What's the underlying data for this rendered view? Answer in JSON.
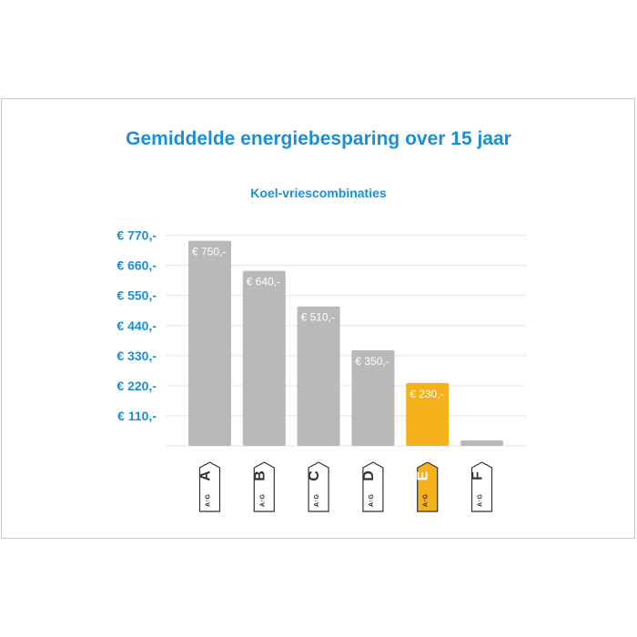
{
  "chart_data": {
    "type": "bar",
    "title": "Gemiddelde energiebesparing over 15 jaar",
    "subtitle": "Koel-vriescombinaties",
    "categories": [
      "A",
      "B",
      "C",
      "D",
      "E",
      "F"
    ],
    "values": [
      750,
      640,
      510,
      350,
      230,
      20
    ],
    "value_labels": [
      "€ 750,-",
      "€ 640,-",
      "€ 510,-",
      "€ 350,-",
      "€ 230,-",
      ""
    ],
    "highlight_index": 4,
    "y_ticks": [
      110,
      220,
      330,
      440,
      550,
      660,
      770
    ],
    "y_tick_labels": [
      "€ 110,-",
      "€ 220,-",
      "€ 330,-",
      "€ 440,-",
      "€ 550,-",
      "€ 660,-",
      "€ 770,-"
    ],
    "ylim": [
      0,
      770
    ],
    "grid": true,
    "label_scale": "A↑G",
    "colors": {
      "bar": "#b9b9b9",
      "highlight": "#f6b21a",
      "text": "#1a8fd6",
      "grid": "#d6e9f5"
    }
  }
}
